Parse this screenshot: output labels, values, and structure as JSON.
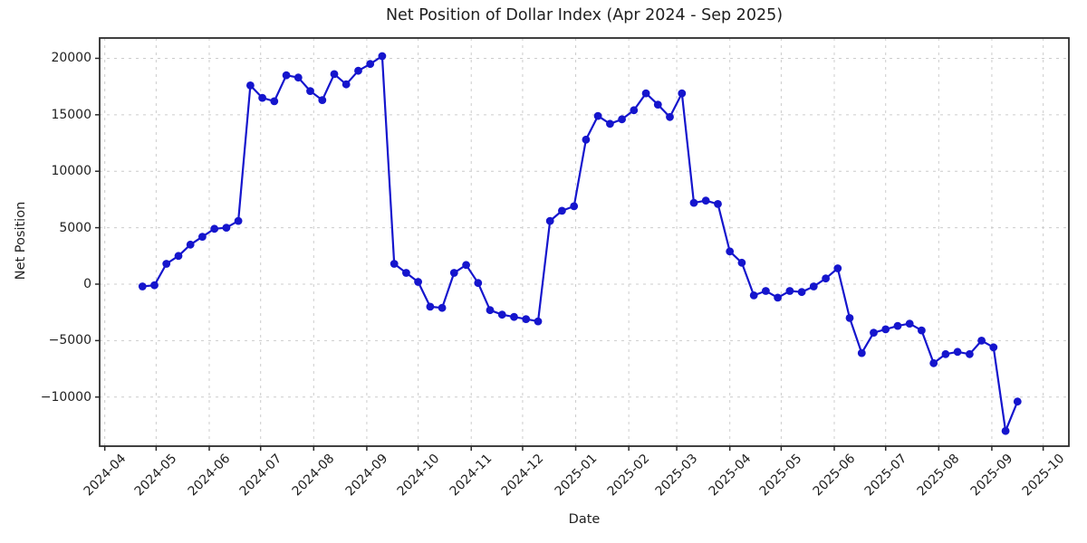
{
  "chart_data": {
    "type": "line",
    "title": "Net Position of Dollar Index (Apr 2024 - Sep 2025)",
    "xlabel": "Date",
    "ylabel": "Net Position",
    "legend": "none",
    "grid": true,
    "line_color": "#1515cd",
    "grid_color": "#cccccc",
    "axis_color": "#2b2b2b",
    "text_color": "#1f1f1f",
    "ylim": [
      -14350,
      21800
    ],
    "xlim": [
      "2024-03-29",
      "2025-10-16"
    ],
    "y_ticks": [
      {
        "value": 20000,
        "label": "20000"
      },
      {
        "value": 15000,
        "label": "15000"
      },
      {
        "value": 10000,
        "label": "10000"
      },
      {
        "value": 5000,
        "label": "5000"
      },
      {
        "value": 0,
        "label": "0"
      },
      {
        "value": -5000,
        "label": "−5000"
      },
      {
        "value": -10000,
        "label": "−10000"
      }
    ],
    "x_ticks": [
      "2024-04",
      "2024-05",
      "2024-06",
      "2024-07",
      "2024-08",
      "2024-09",
      "2024-10",
      "2024-11",
      "2024-12",
      "2025-01",
      "2025-02",
      "2025-03",
      "2025-04",
      "2025-05",
      "2025-06",
      "2025-07",
      "2025-08",
      "2025-09",
      "2025-10"
    ],
    "series": [
      {
        "name": "net_position",
        "dates": [
          "2024-04-23",
          "2024-04-30",
          "2024-05-07",
          "2024-05-14",
          "2024-05-21",
          "2024-05-28",
          "2024-06-04",
          "2024-06-11",
          "2024-06-18",
          "2024-06-25",
          "2024-07-02",
          "2024-07-09",
          "2024-07-16",
          "2024-07-23",
          "2024-07-30",
          "2024-08-06",
          "2024-08-13",
          "2024-08-20",
          "2024-08-27",
          "2024-09-03",
          "2024-09-10",
          "2024-09-17",
          "2024-09-24",
          "2024-10-01",
          "2024-10-08",
          "2024-10-15",
          "2024-10-22",
          "2024-10-29",
          "2024-11-05",
          "2024-11-12",
          "2024-11-19",
          "2024-11-26",
          "2024-12-03",
          "2024-12-10",
          "2024-12-17",
          "2024-12-24",
          "2024-12-31",
          "2025-01-07",
          "2025-01-14",
          "2025-01-21",
          "2025-01-28",
          "2025-02-04",
          "2025-02-11",
          "2025-02-18",
          "2025-02-25",
          "2025-03-04",
          "2025-03-11",
          "2025-03-18",
          "2025-03-25",
          "2025-04-01",
          "2025-04-08",
          "2025-04-15",
          "2025-04-22",
          "2025-04-29",
          "2025-05-06",
          "2025-05-13",
          "2025-05-20",
          "2025-05-27",
          "2025-06-03",
          "2025-06-10",
          "2025-06-17",
          "2025-06-24",
          "2025-07-01",
          "2025-07-08",
          "2025-07-15",
          "2025-07-22",
          "2025-07-29",
          "2025-08-05",
          "2025-08-12",
          "2025-08-19",
          "2025-08-26",
          "2025-09-02",
          "2025-09-09",
          "2025-09-16"
        ],
        "values": [
          -200,
          -100,
          1800,
          2500,
          3500,
          4200,
          4900,
          5000,
          5600,
          17600,
          16500,
          16200,
          18500,
          18300,
          17100,
          16300,
          18600,
          17700,
          18900,
          19500,
          20200,
          1800,
          1000,
          200,
          -2000,
          -2100,
          1000,
          1700,
          100,
          -2300,
          -2700,
          -2900,
          -3100,
          -3300,
          5600,
          6500,
          6900,
          12800,
          14900,
          14200,
          14600,
          15400,
          16900,
          15900,
          14800,
          16900,
          7200,
          7400,
          7100,
          2900,
          1900,
          -1000,
          -600,
          -1200,
          -600,
          -700,
          -200,
          500,
          1400,
          -3000,
          -6100,
          -4300,
          -4000,
          -3700,
          -3500,
          -4100,
          -7000,
          -6200,
          -6000,
          -6200,
          -5000,
          -5600,
          -13000,
          -10400
        ]
      }
    ]
  }
}
